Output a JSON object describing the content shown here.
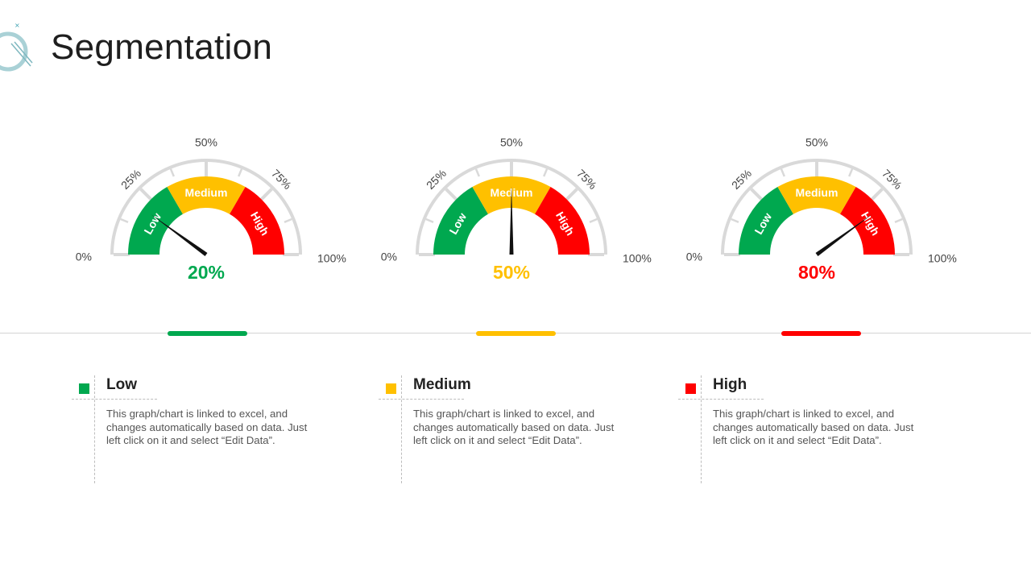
{
  "page": {
    "title": "Segmentation"
  },
  "colors": {
    "low": "#00a84f",
    "medium": "#ffc000",
    "high": "#ff0000",
    "track": "#d9d9d9"
  },
  "chart_data": [
    {
      "type": "gauge",
      "value": 20,
      "value_label": "20%",
      "color": "#00a84f",
      "range": [
        0,
        100
      ],
      "tick_labels": [
        "0%",
        "25%",
        "50%",
        "75%",
        "100%"
      ],
      "bands": [
        {
          "label": "Low",
          "from": 0,
          "to": 33.3,
          "color": "#00a84f"
        },
        {
          "label": "Medium",
          "from": 33.3,
          "to": 66.7,
          "color": "#ffc000"
        },
        {
          "label": "High",
          "from": 66.7,
          "to": 100,
          "color": "#ff0000"
        }
      ]
    },
    {
      "type": "gauge",
      "value": 50,
      "value_label": "50%",
      "color": "#ffc000",
      "range": [
        0,
        100
      ],
      "tick_labels": [
        "0%",
        "25%",
        "50%",
        "75%",
        "100%"
      ],
      "bands": [
        {
          "label": "Low",
          "from": 0,
          "to": 33.3,
          "color": "#00a84f"
        },
        {
          "label": "Medium",
          "from": 33.3,
          "to": 66.7,
          "color": "#ffc000"
        },
        {
          "label": "High",
          "from": 66.7,
          "to": 100,
          "color": "#ff0000"
        }
      ]
    },
    {
      "type": "gauge",
      "value": 80,
      "value_label": "80%",
      "color": "#ff0000",
      "range": [
        0,
        100
      ],
      "tick_labels": [
        "0%",
        "25%",
        "50%",
        "75%",
        "100%"
      ],
      "bands": [
        {
          "label": "Low",
          "from": 0,
          "to": 33.3,
          "color": "#00a84f"
        },
        {
          "label": "Medium",
          "from": 33.3,
          "to": 66.7,
          "color": "#ffc000"
        },
        {
          "label": "High",
          "from": 66.7,
          "to": 100,
          "color": "#ff0000"
        }
      ]
    }
  ],
  "legend": [
    {
      "title": "Low",
      "color": "#00a84f",
      "description": "This graph/chart is linked to excel, and changes automatically based on data. Just left click on it and select “Edit Data”."
    },
    {
      "title": "Medium",
      "color": "#ffc000",
      "description": "This graph/chart is linked to excel, and changes automatically based on data. Just left click on it and select “Edit Data”."
    },
    {
      "title": "High",
      "color": "#ff0000",
      "description": "This graph/chart is linked to excel, and changes automatically based on data. Just left click on it and select “Edit Data”."
    }
  ]
}
